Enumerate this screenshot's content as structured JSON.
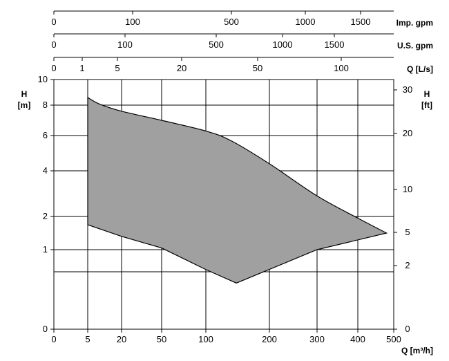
{
  "chart_data": {
    "type": "area",
    "title": "",
    "grid": true,
    "colors": {
      "fill": "#a0a0a0",
      "line": "#000000",
      "grid": "#000000"
    },
    "x_axis": {
      "label": "Q [m³/h]",
      "ticks": [
        0,
        5,
        20,
        50,
        100,
        200,
        300,
        400,
        500
      ],
      "tick_labels": [
        "0",
        "5",
        "20",
        "50",
        "100",
        "200",
        "300",
        "400",
        "500"
      ],
      "range": [
        0,
        500
      ]
    },
    "top_axes": [
      {
        "label": "Imp. gpm",
        "ticks": [
          0,
          100,
          500,
          1000,
          1500
        ],
        "tick_labels": [
          "0",
          "100",
          "500",
          "1000",
          "1500"
        ]
      },
      {
        "label": "U.S. gpm",
        "ticks": [
          0,
          100,
          500,
          1000,
          1500
        ],
        "tick_labels": [
          "0",
          "100",
          "500",
          "1000",
          "1500"
        ]
      },
      {
        "label": "Q [L/s]",
        "ticks": [
          0,
          1,
          5,
          20,
          50,
          100
        ],
        "tick_labels": [
          "0",
          "1",
          "5",
          "20",
          "50",
          "100"
        ]
      }
    ],
    "y_axis_left": {
      "label": "H",
      "unit": "[m]",
      "ticks": [
        0,
        1,
        2,
        4,
        6,
        8,
        10
      ],
      "tick_labels": [
        "0",
        "1",
        "2",
        "4",
        "6",
        "8",
        "10"
      ],
      "range": [
        0,
        10
      ]
    },
    "y_axis_right": {
      "label": "H",
      "unit": "[ft]",
      "ticks": [
        0,
        2,
        5,
        10,
        20,
        30
      ],
      "tick_labels": [
        "0",
        "2",
        "5",
        "10",
        "20",
        "30"
      ]
    },
    "series": [
      {
        "upper_boundary": [
          [
            5,
            8.6
          ],
          [
            10,
            8.1
          ],
          [
            20,
            7.6
          ],
          [
            50,
            7.0
          ],
          [
            100,
            6.3
          ],
          [
            140,
            5.7
          ],
          [
            200,
            4.4
          ],
          [
            300,
            2.9
          ],
          [
            400,
            1.95
          ],
          [
            480,
            1.5
          ]
        ],
        "lower_boundary": [
          [
            5,
            1.75
          ],
          [
            20,
            1.4
          ],
          [
            50,
            1.05
          ],
          [
            100,
            0.75
          ],
          [
            148,
            0.58
          ],
          [
            300,
            1.0
          ],
          [
            480,
            1.5
          ]
        ]
      }
    ]
  }
}
